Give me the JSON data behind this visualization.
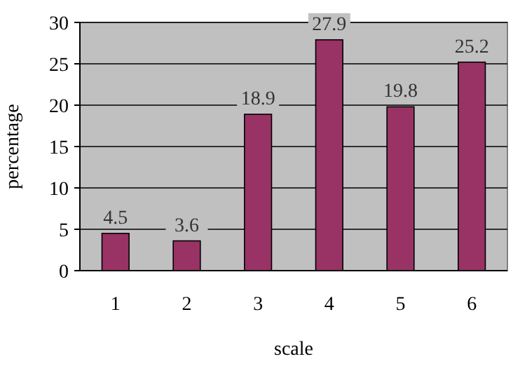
{
  "chart_data": {
    "type": "bar",
    "xlabel": "scale",
    "ylabel": "percentage",
    "categories": [
      "1",
      "2",
      "3",
      "4",
      "5",
      "6"
    ],
    "values": [
      4.5,
      3.6,
      18.9,
      27.9,
      19.8,
      25.2
    ],
    "color": "#993366",
    "ylim": [
      0,
      30
    ],
    "yticks": [
      0,
      5,
      10,
      15,
      20,
      25,
      30
    ],
    "grid": "y",
    "data_labels": true
  }
}
